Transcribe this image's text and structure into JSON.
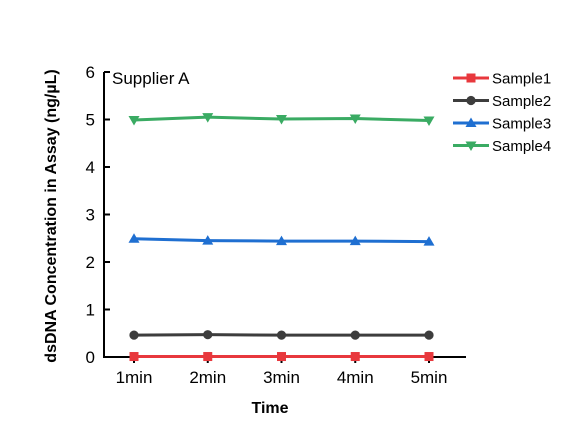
{
  "chart_data": {
    "type": "line",
    "title": "Supplier A",
    "xlabel": "Time",
    "ylabel": "dsDNA Concentration in Assay (ng/µL)",
    "categories": [
      "1min",
      "2min",
      "3min",
      "4min",
      "5min"
    ],
    "ylim": [
      0,
      6
    ],
    "yticks": [
      "0",
      "1",
      "2",
      "3",
      "4",
      "5",
      "6"
    ],
    "grid": false,
    "legend_position": "top-right",
    "series": [
      {
        "name": "Sample1",
        "values": [
          0.01,
          0.01,
          0.01,
          0.01,
          0.01
        ],
        "color": "#e8383d",
        "marker": "square"
      },
      {
        "name": "Sample2",
        "values": [
          0.46,
          0.47,
          0.46,
          0.46,
          0.46
        ],
        "color": "#3d3d3d",
        "marker": "circle"
      },
      {
        "name": "Sample3",
        "values": [
          2.49,
          2.45,
          2.44,
          2.44,
          2.43
        ],
        "color": "#1f6fd1",
        "marker": "triangle-up"
      },
      {
        "name": "Sample4",
        "values": [
          4.99,
          5.05,
          5.01,
          5.02,
          4.98
        ],
        "color": "#3aab63",
        "marker": "triangle-down"
      }
    ]
  }
}
